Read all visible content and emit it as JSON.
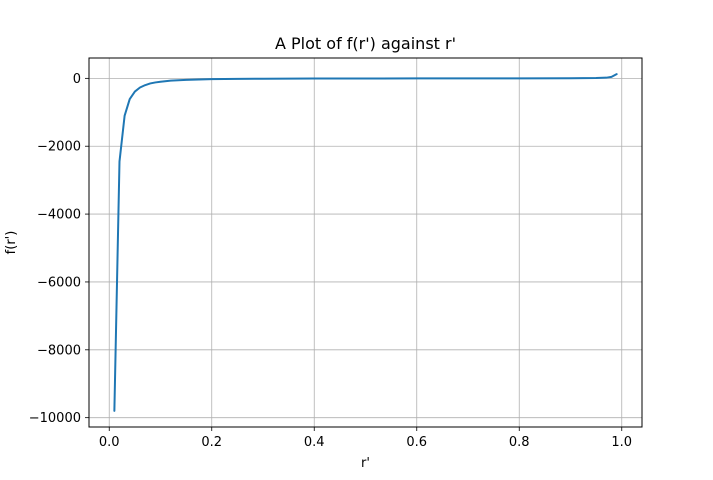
{
  "chart_data": {
    "type": "line",
    "title": "A Plot of f(r') against r'",
    "xlabel": "r'",
    "ylabel": "f(r')",
    "xlim": [
      -0.0395,
      1.0395
    ],
    "ylim": [
      -10275,
      600
    ],
    "grid": true,
    "xticks": [
      0.0,
      0.2,
      0.4,
      0.6,
      0.8,
      1.0
    ],
    "xtick_labels": [
      "0.0",
      "0.2",
      "0.4",
      "0.6",
      "0.8",
      "1.0"
    ],
    "yticks": [
      0,
      -2000,
      -4000,
      -6000,
      -8000,
      -10000
    ],
    "ytick_labels": [
      "0",
      "−2000",
      "−4000",
      "−6000",
      "−8000",
      "−10000"
    ],
    "series": [
      {
        "color": "#1f77b4",
        "x": [
          0.01,
          0.02,
          0.03,
          0.04,
          0.05,
          0.06,
          0.07,
          0.08,
          0.09,
          0.1,
          0.12,
          0.15,
          0.2,
          0.25,
          0.3,
          0.4,
          0.5,
          0.6,
          0.7,
          0.8,
          0.9,
          0.95,
          0.97,
          0.98,
          0.99
        ],
        "y": [
          -9800,
          -2450,
          -1100,
          -610,
          -390,
          -270,
          -200,
          -150,
          -120,
          -100,
          -68,
          -43,
          -24,
          -15,
          -10,
          -5,
          -3,
          -2,
          -1,
          0,
          5,
          10,
          20,
          45,
          125
        ]
      }
    ]
  }
}
